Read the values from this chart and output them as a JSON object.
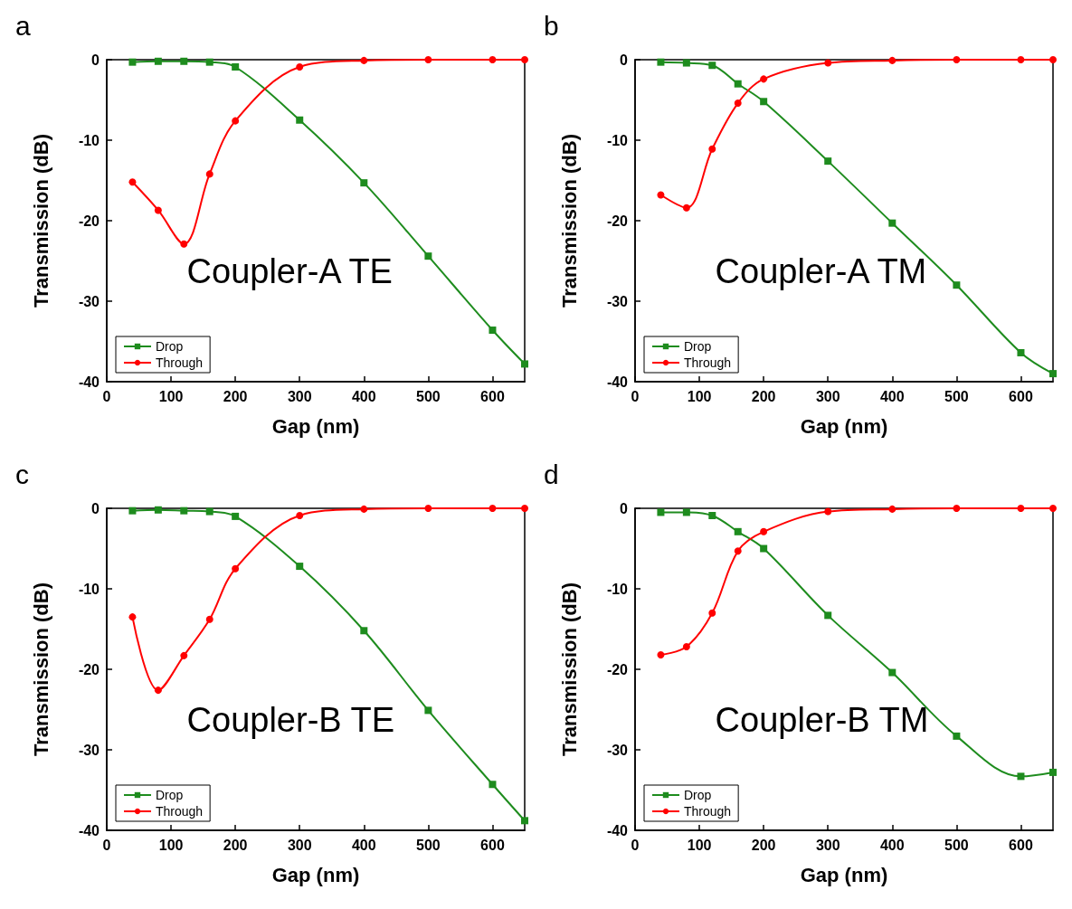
{
  "chart_data": [
    {
      "type": "line",
      "title": "a",
      "xlabel": "Gap (nm)",
      "ylabel": "Transmission (dB)",
      "annotations": [
        "Coupler-A TE"
      ],
      "x": [
        40,
        80,
        120,
        160,
        200,
        300,
        400,
        500,
        600,
        650
      ],
      "xlim": [
        0,
        650
      ],
      "xticks": [
        0,
        100,
        200,
        300,
        400,
        500,
        600
      ],
      "ylim": [
        -40,
        0
      ],
      "yticks": [
        -40,
        -30,
        -20,
        -10,
        0
      ],
      "grid": false,
      "legend": "bottom left",
      "series": [
        {
          "name": "Drop",
          "color": "#1e8c1e",
          "marker": "square",
          "values": [
            -0.3,
            -0.2,
            -0.2,
            -0.3,
            -0.9,
            -7.5,
            -15.3,
            -24.4,
            -33.6,
            -37.8
          ]
        },
        {
          "name": "Through",
          "color": "#ff0000",
          "marker": "circle",
          "values": [
            -15.2,
            -18.7,
            -22.9,
            -14.2,
            -7.6,
            -0.9,
            -0.1,
            0,
            0,
            0
          ]
        }
      ]
    },
    {
      "type": "line",
      "title": "b",
      "xlabel": "Gap (nm)",
      "ylabel": "Transmission (dB)",
      "annotations": [
        "Coupler-A TM"
      ],
      "x": [
        40,
        80,
        120,
        160,
        200,
        300,
        400,
        500,
        600,
        650
      ],
      "xlim": [
        0,
        650
      ],
      "xticks": [
        0,
        100,
        200,
        300,
        400,
        500,
        600
      ],
      "ylim": [
        -40,
        0
      ],
      "yticks": [
        -40,
        -30,
        -20,
        -10,
        0
      ],
      "grid": false,
      "legend": "bottom left",
      "series": [
        {
          "name": "Drop",
          "color": "#1e8c1e",
          "marker": "square",
          "values": [
            -0.3,
            -0.4,
            -0.7,
            -3.0,
            -5.2,
            -12.6,
            -20.3,
            -28.0,
            -36.4,
            -39.0
          ]
        },
        {
          "name": "Through",
          "color": "#ff0000",
          "marker": "circle",
          "values": [
            -16.8,
            -18.4,
            -11.1,
            -5.4,
            -2.4,
            -0.4,
            -0.1,
            0,
            0,
            0
          ]
        }
      ]
    },
    {
      "type": "line",
      "title": "c",
      "xlabel": "Gap (nm)",
      "ylabel": "Transmission (dB)",
      "annotations": [
        "Coupler-B TE"
      ],
      "x": [
        40,
        80,
        120,
        160,
        200,
        300,
        400,
        500,
        600,
        650
      ],
      "xlim": [
        0,
        650
      ],
      "xticks": [
        0,
        100,
        200,
        300,
        400,
        500,
        600
      ],
      "ylim": [
        -40,
        0
      ],
      "yticks": [
        -40,
        -30,
        -20,
        -10,
        0
      ],
      "grid": false,
      "legend": "bottom left",
      "series": [
        {
          "name": "Drop",
          "color": "#1e8c1e",
          "marker": "square",
          "values": [
            -0.3,
            -0.2,
            -0.3,
            -0.4,
            -1.0,
            -7.2,
            -15.2,
            -25.1,
            -34.3,
            -38.8
          ]
        },
        {
          "name": "Through",
          "color": "#ff0000",
          "marker": "circle",
          "values": [
            -13.5,
            -22.6,
            -18.3,
            -13.8,
            -7.5,
            -0.9,
            -0.1,
            0,
            0,
            0
          ]
        }
      ]
    },
    {
      "type": "line",
      "title": "d",
      "xlabel": "Gap (nm)",
      "ylabel": "Transmission (dB)",
      "annotations": [
        "Coupler-B TM"
      ],
      "x": [
        40,
        80,
        120,
        160,
        200,
        300,
        400,
        500,
        600,
        650
      ],
      "xlim": [
        0,
        650
      ],
      "xticks": [
        0,
        100,
        200,
        300,
        400,
        500,
        600
      ],
      "ylim": [
        -40,
        0
      ],
      "yticks": [
        -40,
        -30,
        -20,
        -10,
        0
      ],
      "grid": false,
      "legend": "bottom left",
      "series": [
        {
          "name": "Drop",
          "color": "#1e8c1e",
          "marker": "square",
          "values": [
            -0.5,
            -0.5,
            -0.9,
            -2.9,
            -5.0,
            -13.3,
            -20.4,
            -28.3,
            -33.3,
            -32.8
          ]
        },
        {
          "name": "Through",
          "color": "#ff0000",
          "marker": "circle",
          "values": [
            -18.2,
            -17.2,
            -13.0,
            -5.3,
            -2.9,
            -0.4,
            -0.1,
            0,
            0,
            0
          ]
        }
      ]
    }
  ]
}
